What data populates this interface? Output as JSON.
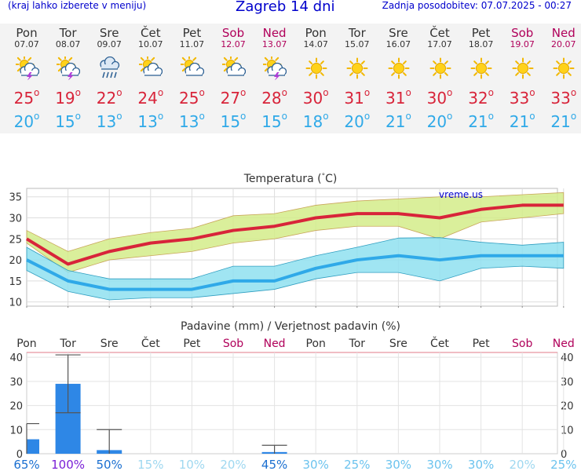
{
  "header": {
    "menu_hint": "(kraj lahko izberete v meniju)",
    "title": "Zagreb 14 dni",
    "updated": "Zadnja posodobitev: 07.07.2025 - 00:27"
  },
  "forecast": [
    {
      "day": "Pon",
      "date": "07.07",
      "weekend": false,
      "icon": "sun-cloud-thunder-icon",
      "max": "25",
      "min": "20"
    },
    {
      "day": "Tor",
      "date": "08.07",
      "weekend": false,
      "icon": "sun-cloud-thunder-icon",
      "max": "19",
      "min": "15"
    },
    {
      "day": "Sre",
      "date": "09.07",
      "weekend": false,
      "icon": "cloud-rain-icon",
      "max": "22",
      "min": "13"
    },
    {
      "day": "Čet",
      "date": "10.07",
      "weekend": false,
      "icon": "sun-cloud-icon",
      "max": "24",
      "min": "13"
    },
    {
      "day": "Pet",
      "date": "11.07",
      "weekend": false,
      "icon": "sun-cloud-icon",
      "max": "25",
      "min": "13"
    },
    {
      "day": "Sob",
      "date": "12.07",
      "weekend": true,
      "icon": "sun-cloud-icon",
      "max": "27",
      "min": "15"
    },
    {
      "day": "Ned",
      "date": "13.07",
      "weekend": true,
      "icon": "sun-cloud-thunder-icon",
      "max": "28",
      "min": "15"
    },
    {
      "day": "Pon",
      "date": "14.07",
      "weekend": false,
      "icon": "sun-icon",
      "max": "30",
      "min": "18"
    },
    {
      "day": "Tor",
      "date": "15.07",
      "weekend": false,
      "icon": "sun-icon",
      "max": "31",
      "min": "20"
    },
    {
      "day": "Sre",
      "date": "16.07",
      "weekend": false,
      "icon": "sun-icon",
      "max": "31",
      "min": "21"
    },
    {
      "day": "Čet",
      "date": "17.07",
      "weekend": false,
      "icon": "sun-icon",
      "max": "30",
      "min": "20"
    },
    {
      "day": "Pet",
      "date": "18.07",
      "weekend": false,
      "icon": "sun-icon",
      "max": "32",
      "min": "21"
    },
    {
      "day": "Sob",
      "date": "19.07",
      "weekend": true,
      "icon": "sun-icon",
      "max": "33",
      "min": "21"
    },
    {
      "day": "Ned",
      "date": "20.07",
      "weekend": true,
      "icon": "sun-icon",
      "max": "33",
      "min": "21"
    }
  ],
  "colors": {
    "max_temp": "#d8243a",
    "min_temp": "#2fa9e8",
    "max_band": "#d4ec8a",
    "min_band": "#8fe0f0",
    "bar": "#2e87e6",
    "weekend": "#b0005a",
    "title_blue": "#0000cc"
  },
  "chart_data": [
    {
      "type": "line",
      "title": "Temperatura (°C)",
      "watermark": "vreme.us",
      "categories": [
        "07.07",
        "08.07",
        "09.07",
        "10.07",
        "11.07",
        "12.07",
        "13.07",
        "14.07",
        "15.07",
        "16.07",
        "17.07",
        "18.07",
        "19.07",
        "20.07"
      ],
      "ylim": [
        9,
        37
      ],
      "yticks": [
        10,
        15,
        20,
        25,
        30,
        35
      ],
      "grid": true,
      "series": [
        {
          "name": "max",
          "values": [
            25,
            19,
            22,
            24,
            25,
            27,
            28,
            30,
            31,
            31,
            30,
            32,
            33,
            33
          ],
          "band_low": [
            24,
            17,
            20,
            21,
            22,
            24,
            25,
            27,
            28,
            28,
            25,
            29,
            30,
            31
          ],
          "band_high": [
            27,
            22,
            25,
            26.5,
            27.5,
            30.5,
            31,
            33,
            34,
            34.5,
            35,
            35,
            35.5,
            36
          ]
        },
        {
          "name": "min",
          "values": [
            20,
            15,
            13,
            13,
            13,
            15,
            15,
            18,
            20,
            21,
            20,
            21,
            21,
            21
          ],
          "band_low": [
            17.5,
            12.5,
            10.5,
            11,
            11,
            12,
            13,
            15.5,
            17,
            17,
            15,
            18,
            18.5,
            18
          ],
          "band_high": [
            23,
            17.5,
            15.5,
            15.5,
            15.5,
            18.5,
            18.5,
            21,
            23,
            25.2,
            25.3,
            24.2,
            23.5,
            24.2
          ]
        }
      ]
    },
    {
      "type": "bar",
      "title": "Padavine (mm) / Verjetnost padavin (%)",
      "categories": [
        "Pon",
        "Tor",
        "Sre",
        "Čet",
        "Pet",
        "Sob",
        "Ned",
        "Pon",
        "Tor",
        "Sre",
        "Čet",
        "Pet",
        "Sob",
        "Ned"
      ],
      "weekend": [
        false,
        false,
        false,
        false,
        false,
        true,
        true,
        false,
        false,
        false,
        false,
        false,
        true,
        true
      ],
      "values": [
        6,
        29,
        1.5,
        0,
        0,
        0,
        0.7,
        0,
        0,
        0,
        0,
        0,
        0,
        0
      ],
      "error_low": [
        0,
        17,
        0,
        0,
        0,
        0,
        0,
        0,
        0,
        0,
        0,
        0,
        0,
        0
      ],
      "error_high": [
        12.5,
        41,
        10,
        0,
        0,
        0,
        3.5,
        0,
        0,
        0,
        0,
        0,
        0,
        0
      ],
      "probability": [
        "65%",
        "100%",
        "50%",
        "15%",
        "10%",
        "20%",
        "45%",
        "30%",
        "25%",
        "30%",
        "30%",
        "30%",
        "20%",
        "25%"
      ],
      "probability_color": [
        "#1a6fd0",
        "#7a1fd6",
        "#1a6fd0",
        "#9fd8f0",
        "#9fd8f0",
        "#9fd8f0",
        "#1a6fd0",
        "#6cc3ee",
        "#6cc3ee",
        "#6cc3ee",
        "#6cc3ee",
        "#6cc3ee",
        "#9fd8f0",
        "#6cc3ee"
      ],
      "ylim": [
        0,
        42
      ],
      "yticks": [
        0,
        10,
        20,
        30,
        40
      ],
      "grid": true
    }
  ]
}
